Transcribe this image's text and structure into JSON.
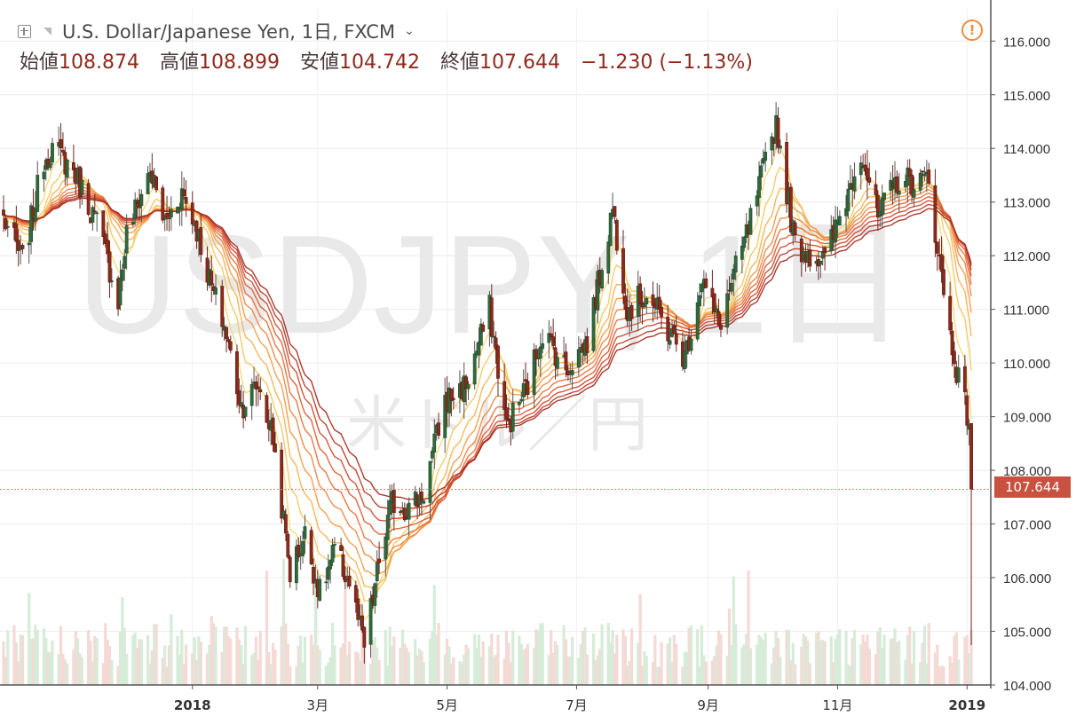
{
  "header": {
    "title": "U.S. Dollar/Japanese Yen, 1日, FXCM",
    "ohlc": {
      "open_label": "始値",
      "open": "108.874",
      "high_label": "高値",
      "high": "108.899",
      "low_label": "安値",
      "low": "104.742",
      "close_label": "終値",
      "close": "107.644",
      "change": "−1.230 (−1.13%)"
    }
  },
  "watermark": {
    "symbol": "USDJPY, 1日",
    "subtitle": "米ドル／円"
  },
  "colors": {
    "up": "#2f6a3c",
    "down": "#8e2a1b",
    "last_price_tag": "#c9513f",
    "warning": "#f08c3a"
  },
  "chart_data": {
    "type": "candlestick",
    "yaxis": {
      "ticks": [
        "104.000",
        "105.000",
        "106.000",
        "107.000",
        "108.000",
        "109.000",
        "110.000",
        "111.000",
        "112.000",
        "113.000",
        "114.000",
        "115.000",
        "116.000"
      ],
      "range": [
        104.0,
        116.6
      ]
    },
    "xaxis": {
      "ticks": [
        {
          "label": "2018",
          "date": "2018-01-01"
        },
        {
          "label": "3月",
          "date": "2018-03-01"
        },
        {
          "label": "5月",
          "date": "2018-05-01"
        },
        {
          "label": "7月",
          "date": "2018-07-01"
        },
        {
          "label": "9月",
          "date": "2018-09-01"
        },
        {
          "label": "11月",
          "date": "2018-11-01"
        },
        {
          "label": "2019",
          "date": "2019-01-01"
        }
      ],
      "range": [
        "2017-10-04",
        "2019-01-08"
      ]
    },
    "last_price": "107.644",
    "last_price_value": 107.644,
    "price_path": [
      [
        "2017-10-04",
        112.7
      ],
      [
        "2017-10-13",
        111.9
      ],
      [
        "2017-10-23",
        113.8
      ],
      [
        "2017-10-27",
        114.0
      ],
      [
        "2017-11-06",
        113.6
      ],
      [
        "2017-11-17",
        112.6
      ],
      [
        "2017-11-27",
        111.2
      ],
      [
        "2017-12-01",
        112.4
      ],
      [
        "2017-12-12",
        113.6
      ],
      [
        "2017-12-19",
        112.6
      ],
      [
        "2017-12-27",
        113.2
      ],
      [
        "2018-01-03",
        112.5
      ],
      [
        "2018-01-10",
        111.4
      ],
      [
        "2018-01-16",
        110.7
      ],
      [
        "2018-01-24",
        109.2
      ],
      [
        "2018-02-01",
        109.6
      ],
      [
        "2018-02-08",
        108.6
      ],
      [
        "2018-02-16",
        106.1
      ],
      [
        "2018-02-23",
        106.8
      ],
      [
        "2018-03-02",
        105.7
      ],
      [
        "2018-03-09",
        106.5
      ],
      [
        "2018-03-16",
        105.9
      ],
      [
        "2018-03-23",
        104.7
      ],
      [
        "2018-03-30",
        106.3
      ],
      [
        "2018-04-05",
        107.4
      ],
      [
        "2018-04-13",
        107.3
      ],
      [
        "2018-04-20",
        107.6
      ],
      [
        "2018-04-30",
        109.3
      ],
      [
        "2018-05-10",
        109.6
      ],
      [
        "2018-05-21",
        111.0
      ],
      [
        "2018-05-29",
        108.8
      ],
      [
        "2018-06-08",
        109.6
      ],
      [
        "2018-06-15",
        110.6
      ],
      [
        "2018-06-26",
        109.9
      ],
      [
        "2018-07-06",
        110.4
      ],
      [
        "2018-07-18",
        112.9
      ],
      [
        "2018-07-25",
        111.0
      ],
      [
        "2018-08-03",
        111.3
      ],
      [
        "2018-08-13",
        110.6
      ],
      [
        "2018-08-21",
        110.1
      ],
      [
        "2018-08-29",
        111.6
      ],
      [
        "2018-09-06",
        110.7
      ],
      [
        "2018-09-20",
        112.5
      ],
      [
        "2018-10-03",
        114.5
      ],
      [
        "2018-10-12",
        112.2
      ],
      [
        "2018-10-26",
        111.9
      ],
      [
        "2018-11-06",
        113.2
      ],
      [
        "2018-11-12",
        114.0
      ],
      [
        "2018-11-20",
        112.7
      ],
      [
        "2018-11-29",
        113.4
      ],
      [
        "2018-12-10",
        113.4
      ],
      [
        "2018-12-14",
        113.4
      ],
      [
        "2018-12-21",
        111.3
      ],
      [
        "2018-12-25",
        110.3
      ],
      [
        "2018-12-28",
        109.7
      ],
      [
        "2019-01-02",
        108.9
      ],
      [
        "2019-01-03",
        107.644
      ]
    ],
    "ribbon": {
      "type": "moving-average ribbon",
      "line_count": 10,
      "colors": [
        "#f7d974",
        "#f7c85f",
        "#f5b452",
        "#f29d48",
        "#ee8742",
        "#e7723c",
        "#dd5f36",
        "#cf4d31",
        "#bd3d2b",
        "#a42f24"
      ]
    }
  }
}
